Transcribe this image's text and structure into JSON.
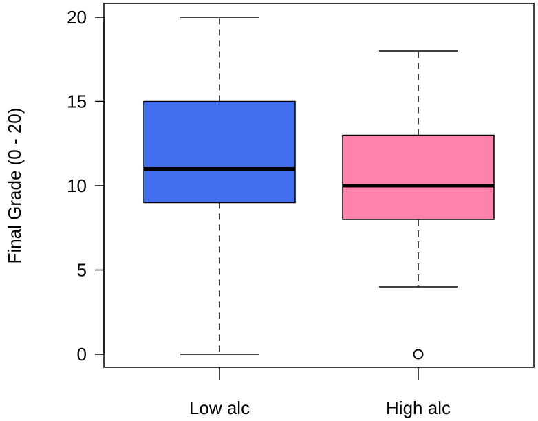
{
  "chart_data": {
    "type": "box",
    "ylabel": "Final Grade (0 - 20)",
    "xlabel": "",
    "ylim": [
      0,
      20
    ],
    "yticks": [
      0,
      5,
      10,
      15,
      20
    ],
    "categories": [
      "Low alc",
      "High alc"
    ],
    "boxes": [
      {
        "category": "Low alc",
        "whisker_low": 0,
        "q1": 9,
        "median": 11,
        "q3": 15,
        "whisker_high": 20,
        "outliers": [],
        "color": "#436EEE"
      },
      {
        "category": "High alc",
        "whisker_low": 4,
        "q1": 8,
        "median": 10,
        "q3": 13,
        "whisker_high": 18,
        "outliers": [
          0
        ],
        "color": "#FF82AB"
      }
    ]
  }
}
